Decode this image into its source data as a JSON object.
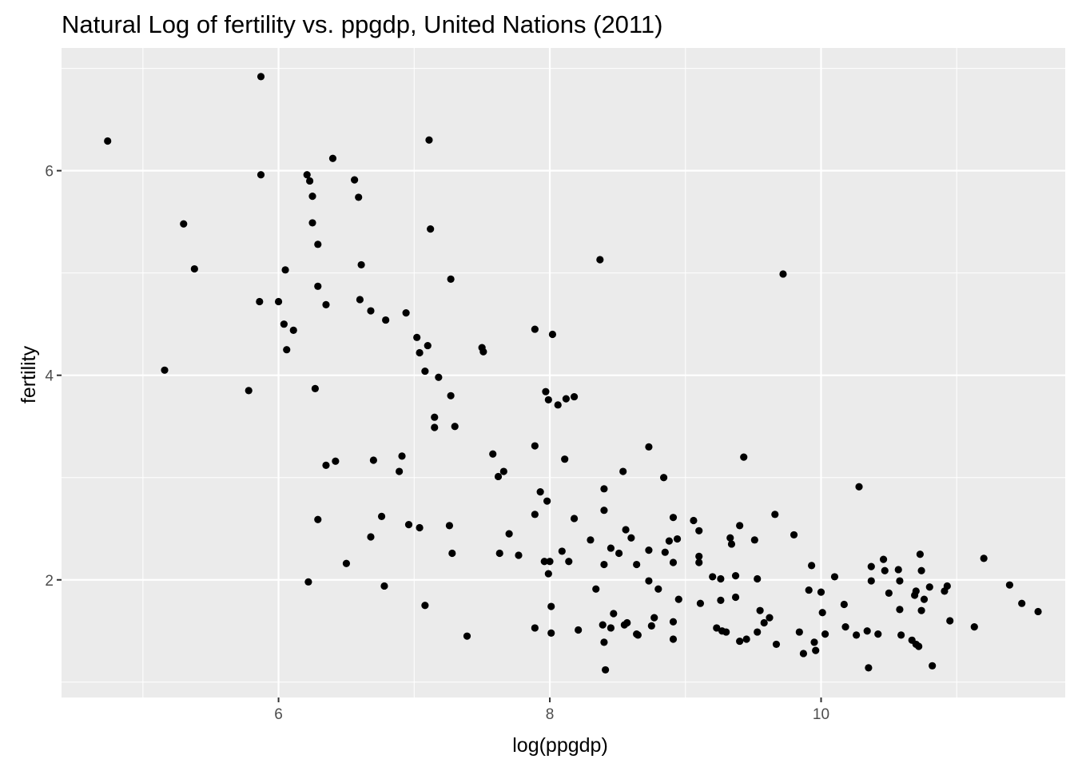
{
  "chart_data": {
    "type": "scatter",
    "title": "Natural Log of fertility vs. ppgdp, United Nations (2011)",
    "xlabel": "log(ppgdp)",
    "ylabel": "fertility",
    "xlim": [
      4.4,
      11.8
    ],
    "ylim": [
      0.85,
      7.2
    ],
    "x_ticks": [
      6,
      8,
      10
    ],
    "x_tick_labels": [
      "6",
      "8",
      "10"
    ],
    "x_minor_ticks": [
      5,
      7,
      9,
      11
    ],
    "y_ticks": [
      2,
      4,
      6
    ],
    "y_tick_labels": [
      "2",
      "4",
      "6"
    ],
    "y_minor_ticks": [
      1,
      3,
      5,
      7
    ],
    "grid": true,
    "background": "#ebebeb",
    "grid_color": "#ffffff",
    "point_color": "#000000",
    "points": [
      [
        4.74,
        6.29
      ],
      [
        5.16,
        4.05
      ],
      [
        5.3,
        5.48
      ],
      [
        5.38,
        5.04
      ],
      [
        5.78,
        3.85
      ],
      [
        5.87,
        6.92
      ],
      [
        5.87,
        5.96
      ],
      [
        5.86,
        4.72
      ],
      [
        6.0,
        4.72
      ],
      [
        6.04,
        4.5
      ],
      [
        6.05,
        5.03
      ],
      [
        6.06,
        4.25
      ],
      [
        6.11,
        4.44
      ],
      [
        6.21,
        5.96
      ],
      [
        6.23,
        5.9
      ],
      [
        6.25,
        5.75
      ],
      [
        6.25,
        5.49
      ],
      [
        6.27,
        3.87
      ],
      [
        6.29,
        5.28
      ],
      [
        6.29,
        4.87
      ],
      [
        6.29,
        2.59
      ],
      [
        6.22,
        1.98
      ],
      [
        6.35,
        4.69
      ],
      [
        6.35,
        3.12
      ],
      [
        6.4,
        6.12
      ],
      [
        6.42,
        3.16
      ],
      [
        6.5,
        2.16
      ],
      [
        6.56,
        5.91
      ],
      [
        6.59,
        5.74
      ],
      [
        6.61,
        5.08
      ],
      [
        6.6,
        4.74
      ],
      [
        6.68,
        4.63
      ],
      [
        6.7,
        3.17
      ],
      [
        6.68,
        2.42
      ],
      [
        6.76,
        2.62
      ],
      [
        6.78,
        1.94
      ],
      [
        6.79,
        4.54
      ],
      [
        6.89,
        3.06
      ],
      [
        6.91,
        3.21
      ],
      [
        6.94,
        4.61
      ],
      [
        6.96,
        2.54
      ],
      [
        7.02,
        4.37
      ],
      [
        7.04,
        4.22
      ],
      [
        7.04,
        2.51
      ],
      [
        7.08,
        4.04
      ],
      [
        7.1,
        4.29
      ],
      [
        7.08,
        1.75
      ],
      [
        7.11,
        6.3
      ],
      [
        7.12,
        5.43
      ],
      [
        7.15,
        3.59
      ],
      [
        7.15,
        3.49
      ],
      [
        7.18,
        3.98
      ],
      [
        7.26,
        2.53
      ],
      [
        7.27,
        4.94
      ],
      [
        7.27,
        3.8
      ],
      [
        7.3,
        3.5
      ],
      [
        7.28,
        2.26
      ],
      [
        7.39,
        1.45
      ],
      [
        7.5,
        4.27
      ],
      [
        7.51,
        4.23
      ],
      [
        7.58,
        3.23
      ],
      [
        7.62,
        3.01
      ],
      [
        7.63,
        2.26
      ],
      [
        7.66,
        3.06
      ],
      [
        7.7,
        2.45
      ],
      [
        7.77,
        2.24
      ],
      [
        7.89,
        4.45
      ],
      [
        7.89,
        3.31
      ],
      [
        7.89,
        2.64
      ],
      [
        7.89,
        1.53
      ],
      [
        7.93,
        2.86
      ],
      [
        7.97,
        3.84
      ],
      [
        7.96,
        2.18
      ],
      [
        7.99,
        3.76
      ],
      [
        7.98,
        2.77
      ],
      [
        7.99,
        2.06
      ],
      [
        8.0,
        2.18
      ],
      [
        8.01,
        1.74
      ],
      [
        8.01,
        1.48
      ],
      [
        8.02,
        4.4
      ],
      [
        8.06,
        3.71
      ],
      [
        8.09,
        2.28
      ],
      [
        8.11,
        3.18
      ],
      [
        8.12,
        3.77
      ],
      [
        8.14,
        2.18
      ],
      [
        8.18,
        3.79
      ],
      [
        8.18,
        2.6
      ],
      [
        8.21,
        1.51
      ],
      [
        8.3,
        2.39
      ],
      [
        8.34,
        1.91
      ],
      [
        8.37,
        5.13
      ],
      [
        8.39,
        1.56
      ],
      [
        8.4,
        2.89
      ],
      [
        8.4,
        2.68
      ],
      [
        8.4,
        2.15
      ],
      [
        8.4,
        1.39
      ],
      [
        8.41,
        1.12
      ],
      [
        8.45,
        2.31
      ],
      [
        8.45,
        1.53
      ],
      [
        8.47,
        1.67
      ],
      [
        8.51,
        2.26
      ],
      [
        8.54,
        3.06
      ],
      [
        8.56,
        2.49
      ],
      [
        8.55,
        1.56
      ],
      [
        8.57,
        1.58
      ],
      [
        8.6,
        2.41
      ],
      [
        8.64,
        2.15
      ],
      [
        8.64,
        1.47
      ],
      [
        8.65,
        1.46
      ],
      [
        8.73,
        3.3
      ],
      [
        8.73,
        2.29
      ],
      [
        8.73,
        1.99
      ],
      [
        8.75,
        1.55
      ],
      [
        8.77,
        1.63
      ],
      [
        8.8,
        1.91
      ],
      [
        8.84,
        3.0
      ],
      [
        8.85,
        2.27
      ],
      [
        8.88,
        2.38
      ],
      [
        8.91,
        2.61
      ],
      [
        8.91,
        2.17
      ],
      [
        8.91,
        1.59
      ],
      [
        8.91,
        1.42
      ],
      [
        8.94,
        2.4
      ],
      [
        8.95,
        1.81
      ],
      [
        9.06,
        2.58
      ],
      [
        9.1,
        2.48
      ],
      [
        9.1,
        2.23
      ],
      [
        9.1,
        2.17
      ],
      [
        9.11,
        1.77
      ],
      [
        9.2,
        2.03
      ],
      [
        9.23,
        1.53
      ],
      [
        9.26,
        2.01
      ],
      [
        9.26,
        1.8
      ],
      [
        9.27,
        1.5
      ],
      [
        9.3,
        1.49
      ],
      [
        9.33,
        2.41
      ],
      [
        9.34,
        2.35
      ],
      [
        9.37,
        2.04
      ],
      [
        9.37,
        1.83
      ],
      [
        9.4,
        2.53
      ],
      [
        9.43,
        3.2
      ],
      [
        9.4,
        1.4
      ],
      [
        9.45,
        1.42
      ],
      [
        9.51,
        2.39
      ],
      [
        9.53,
        2.01
      ],
      [
        9.53,
        1.49
      ],
      [
        9.55,
        1.7
      ],
      [
        9.58,
        1.58
      ],
      [
        9.62,
        1.63
      ],
      [
        9.66,
        2.64
      ],
      [
        9.67,
        1.37
      ],
      [
        9.72,
        4.99
      ],
      [
        9.8,
        2.44
      ],
      [
        9.84,
        1.49
      ],
      [
        9.87,
        1.28
      ],
      [
        9.91,
        1.9
      ],
      [
        9.93,
        2.14
      ],
      [
        9.95,
        1.39
      ],
      [
        9.96,
        1.31
      ],
      [
        10.0,
        1.88
      ],
      [
        10.01,
        1.68
      ],
      [
        10.03,
        1.47
      ],
      [
        10.1,
        2.03
      ],
      [
        10.17,
        1.76
      ],
      [
        10.18,
        1.54
      ],
      [
        10.26,
        1.46
      ],
      [
        10.28,
        2.91
      ],
      [
        10.34,
        1.5
      ],
      [
        10.35,
        1.14
      ],
      [
        10.37,
        2.13
      ],
      [
        10.37,
        1.99
      ],
      [
        10.42,
        1.47
      ],
      [
        10.46,
        2.2
      ],
      [
        10.47,
        2.09
      ],
      [
        10.5,
        1.87
      ],
      [
        10.57,
        2.1
      ],
      [
        10.58,
        1.99
      ],
      [
        10.58,
        1.71
      ],
      [
        10.59,
        1.46
      ],
      [
        10.67,
        1.41
      ],
      [
        10.69,
        1.85
      ],
      [
        10.7,
        1.89
      ],
      [
        10.7,
        1.37
      ],
      [
        10.72,
        1.35
      ],
      [
        10.73,
        2.25
      ],
      [
        10.74,
        2.09
      ],
      [
        10.74,
        1.7
      ],
      [
        10.76,
        1.81
      ],
      [
        10.8,
        1.93
      ],
      [
        10.82,
        1.16
      ],
      [
        10.91,
        1.89
      ],
      [
        10.93,
        1.94
      ],
      [
        10.95,
        1.6
      ],
      [
        11.13,
        1.54
      ],
      [
        11.2,
        2.21
      ],
      [
        11.39,
        1.95
      ],
      [
        11.48,
        1.77
      ],
      [
        11.6,
        1.69
      ]
    ]
  }
}
